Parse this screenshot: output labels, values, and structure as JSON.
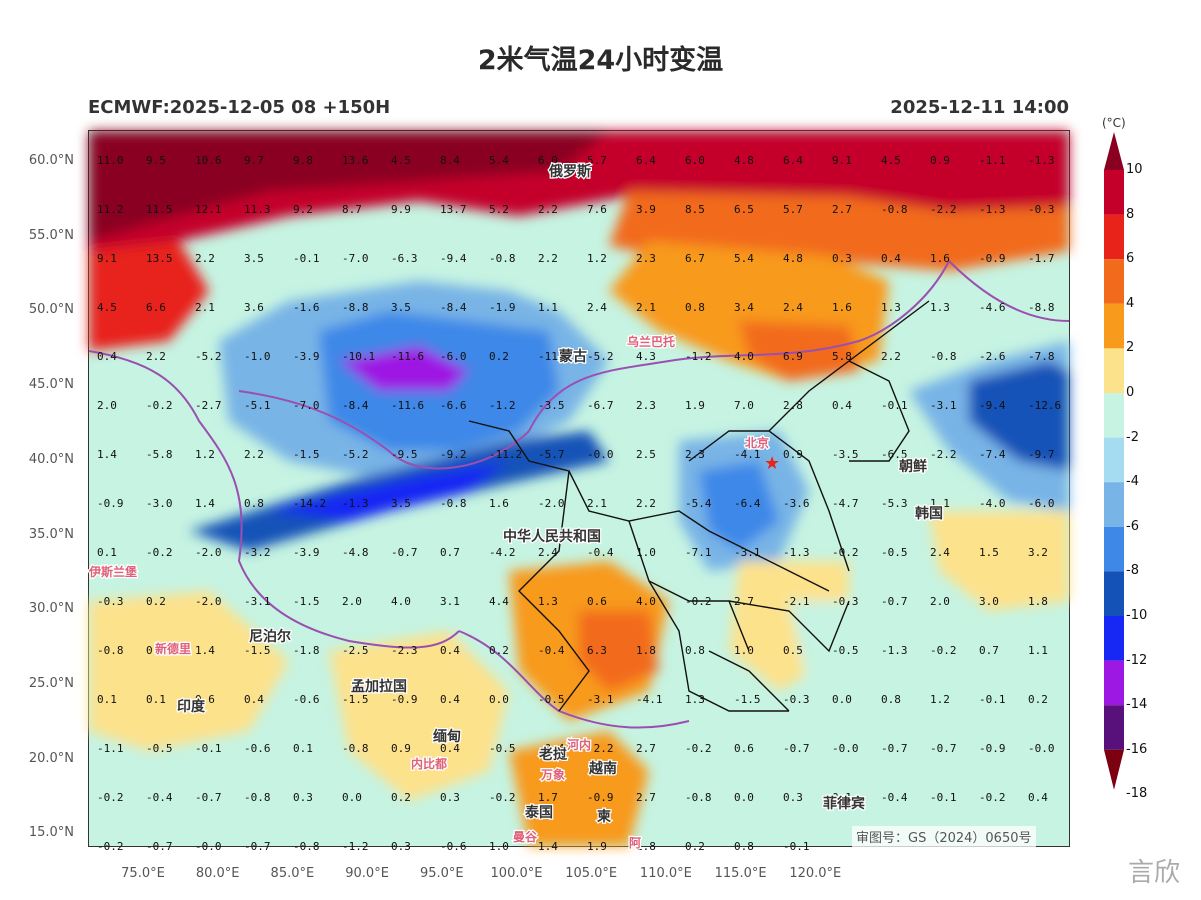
{
  "title": "2米气温24小时变温",
  "model_run": "ECMWF:2025-12-05 08 +150H",
  "valid_time": "2025-12-11 14:00",
  "colorbar": {
    "unit": "(°C)",
    "labels": [
      "10",
      "8",
      "6",
      "4",
      "2",
      "0",
      "-2",
      "-4",
      "-6",
      "-8",
      "-10",
      "-12",
      "-14",
      "-16",
      "-18"
    ],
    "colors": [
      "#8a0020",
      "#c4002a",
      "#e8241a",
      "#f26a1c",
      "#f89a1c",
      "#fde28c",
      "#c6f3e2",
      "#a6dcf2",
      "#78b4e6",
      "#3e88e8",
      "#1452b8",
      "#1828f4",
      "#9e18e4",
      "#58107a",
      "#7c0010"
    ]
  },
  "latitude_labels": [
    "60.0°N",
    "55.0°N",
    "50.0°N",
    "45.0°N",
    "40.0°N",
    "35.0°N",
    "30.0°N",
    "25.0°N",
    "20.0°N",
    "15.0°N"
  ],
  "longitude_labels": [
    "75.0°E",
    "80.0°E",
    "85.0°E",
    "90.0°E",
    "95.0°E",
    "100.0°E",
    "105.0°E",
    "110.0°E",
    "115.0°E",
    "120.0°E"
  ],
  "grid_values": [
    [
      "11.0",
      "9.5",
      "10.6",
      "9.7",
      "9.8",
      "13.6",
      "4.5",
      "8.4",
      "5.4",
      "6.0",
      "5.7",
      "6.4",
      "6.0",
      "4.8",
      "6.4",
      "9.1",
      "4.5",
      "0.9",
      "-1.1",
      "-1.3"
    ],
    [
      "11.2",
      "11.5",
      "12.1",
      "11.3",
      "9.2",
      "8.7",
      "9.9",
      "13.7",
      "5.2",
      "2.2",
      "7.6",
      "3.9",
      "8.5",
      "6.5",
      "5.7",
      "2.7",
      "-0.8",
      "-2.2",
      "-1.3",
      "-0.3"
    ],
    [
      "9.1",
      "13.5",
      "2.2",
      "3.5",
      "-0.1",
      "-7.0",
      "-6.3",
      "-9.4",
      "-0.8",
      "2.2",
      "1.2",
      "2.3",
      "6.7",
      "5.4",
      "4.8",
      "0.3",
      "0.4",
      "1.6",
      "-0.9",
      "-1.7"
    ],
    [
      "4.5",
      "6.6",
      "2.1",
      "3.6",
      "-1.6",
      "-8.8",
      "3.5",
      "-8.4",
      "-1.9",
      "1.1",
      "2.4",
      "2.1",
      "0.8",
      "3.4",
      "2.4",
      "1.6",
      "1.3",
      "1.3",
      "-4.6",
      "-8.8"
    ],
    [
      "0.4",
      "2.2",
      "-5.2",
      "-1.0",
      "-3.9",
      "-10.1",
      "-11.6",
      "-6.0",
      "0.2",
      "-11.2",
      "-5.2",
      "4.3",
      "-1.2",
      "4.0",
      "6.9",
      "5.8",
      "2.2",
      "-0.8",
      "-2.6",
      "-7.8"
    ],
    [
      "2.0",
      "-0.2",
      "-2.7",
      "-5.1",
      "-7.0",
      "-8.4",
      "-11.6",
      "-6.6",
      "-1.2",
      "-3.5",
      "-6.7",
      "2.3",
      "1.9",
      "7.0",
      "2.8",
      "0.4",
      "-0.1",
      "-3.1",
      "-9.4",
      "-12.6"
    ],
    [
      "1.4",
      "-5.8",
      "1.2",
      "2.2",
      "-1.5",
      "-5.2",
      "-9.5",
      "-9.2",
      "-11.2",
      "-5.7",
      "-0.0",
      "2.5",
      "2.3",
      "-4.1",
      "0.9",
      "-3.5",
      "-6.5",
      "-2.2",
      "-7.4",
      "-9.7"
    ],
    [
      "-0.9",
      "-3.0",
      "1.4",
      "0.8",
      "-14.2",
      "-1.3",
      "3.5",
      "-0.8",
      "1.6",
      "-2.0",
      "2.1",
      "2.2",
      "-5.4",
      "-6.4",
      "-3.6",
      "-4.7",
      "-5.3",
      "1.1",
      "-4.0",
      "-6.0"
    ],
    [
      "0.1",
      "-0.2",
      "-2.0",
      "-3.2",
      "-3.9",
      "-4.8",
      "-0.7",
      "0.7",
      "-4.2",
      "2.4",
      "-0.4",
      "1.0",
      "-7.1",
      "-3.1",
      "-1.3",
      "-0.2",
      "-0.5",
      "2.4",
      "1.5",
      "3.2"
    ],
    [
      "-0.3",
      "0.2",
      "-2.0",
      "-3.1",
      "-1.5",
      "2.0",
      "4.0",
      "3.1",
      "4.4",
      "1.3",
      "0.6",
      "4.0",
      "-0.2",
      "2.7",
      "-2.1",
      "-0.3",
      "-0.7",
      "2.0",
      "3.0",
      "1.8"
    ],
    [
      "-0.8",
      "0.3",
      "1.4",
      "-1.5",
      "-1.8",
      "-2.5",
      "-2.3",
      "0.4",
      "0.2",
      "-0.4",
      "6.3",
      "1.8",
      "0.8",
      "1.0",
      "0.5",
      "-0.5",
      "-1.3",
      "-0.2",
      "0.7",
      "1.1"
    ],
    [
      "0.1",
      "0.1",
      "0.6",
      "0.4",
      "-0.6",
      "-1.5",
      "-0.9",
      "0.4",
      "0.0",
      "-0.5",
      "-3.1",
      "-4.1",
      "1.3",
      "-1.5",
      "-0.3",
      "0.0",
      "0.8",
      "1.2",
      "-0.1",
      "0.2"
    ],
    [
      "-1.1",
      "-0.5",
      "-0.1",
      "-0.6",
      "0.1",
      "-0.8",
      "0.9",
      "0.4",
      "-0.5",
      "-0.4",
      "-2.2",
      "2.7",
      "-0.2",
      "0.6",
      "-0.7",
      "-0.0",
      "-0.7",
      "-0.7",
      "-0.9",
      "-0.0"
    ],
    [
      "-0.2",
      "-0.4",
      "-0.7",
      "-0.8",
      "0.3",
      "0.0",
      "0.2",
      "0.3",
      "-0.2",
      "1.7",
      "-0.9",
      "2.7",
      "-0.8",
      "0.0",
      "0.3",
      "0.1",
      "-0.4",
      "-0.1",
      "-0.2",
      "0.4"
    ],
    [
      "-0.2",
      "-0.7",
      "-0.0",
      "-0.7",
      "-0.8",
      "-1.2",
      "0.3",
      "-0.6",
      "1.0",
      "1.4",
      "1.9",
      "1.8",
      "0.2",
      "0.8",
      "-0.1",
      "",
      "",
      "",
      "",
      ""
    ]
  ],
  "place_labels": [
    {
      "text": "俄罗斯",
      "color": "#333333"
    },
    {
      "text": "蒙古",
      "color": "#333333"
    },
    {
      "text": "乌兰巴托",
      "color": "#e0607a"
    },
    {
      "text": "北京",
      "color": "#e0607a"
    },
    {
      "text": "朝鲜",
      "color": "#333333"
    },
    {
      "text": "韩国",
      "color": "#333333"
    },
    {
      "text": "中华人民共和国",
      "color": "#333333"
    },
    {
      "text": "伊斯兰堡",
      "color": "#e0607a"
    },
    {
      "text": "新德里",
      "color": "#e0607a"
    },
    {
      "text": "尼泊尔",
      "color": "#333333"
    },
    {
      "text": "印度",
      "color": "#333333"
    },
    {
      "text": "孟加拉国",
      "color": "#333333"
    },
    {
      "text": "缅甸",
      "color": "#333333"
    },
    {
      "text": "内比都",
      "color": "#e0607a"
    },
    {
      "text": "老挝",
      "color": "#333333"
    },
    {
      "text": "河内",
      "color": "#e0607a"
    },
    {
      "text": "越南",
      "color": "#333333"
    },
    {
      "text": "万象",
      "color": "#e0607a"
    },
    {
      "text": "泰国",
      "color": "#333333"
    },
    {
      "text": "曼谷",
      "color": "#e0607a"
    },
    {
      "text": "柬",
      "color": "#333333"
    },
    {
      "text": "菲律宾",
      "color": "#333333"
    },
    {
      "text": "阿",
      "color": "#e0607a"
    }
  ],
  "map_approval": "审图号：GS（2024）0650号",
  "watermark": "言欣"
}
